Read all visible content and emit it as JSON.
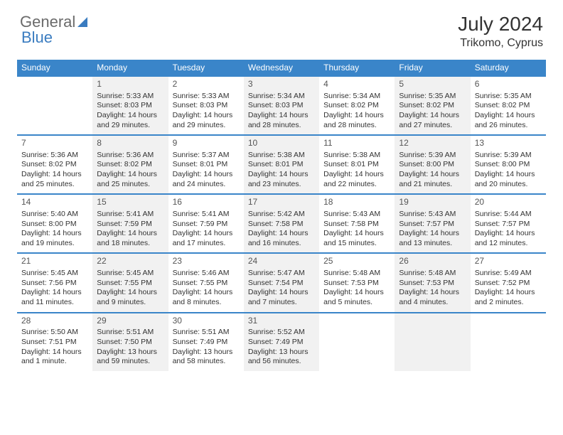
{
  "logo": {
    "part1": "General",
    "part2": "Blue"
  },
  "title": "July 2024",
  "location": "Trikomo, Cyprus",
  "colors": {
    "header_bg": "#3a85c9",
    "header_text": "#ffffff",
    "alt_row_bg": "#f1f1f1",
    "text": "#333333",
    "logo_gray": "#6a6a6a",
    "logo_blue": "#3a7cc0"
  },
  "dow": [
    "Sunday",
    "Monday",
    "Tuesday",
    "Wednesday",
    "Thursday",
    "Friday",
    "Saturday"
  ],
  "weeks": [
    [
      {
        "n": "",
        "lines": []
      },
      {
        "n": "1",
        "lines": [
          "Sunrise: 5:33 AM",
          "Sunset: 8:03 PM",
          "Daylight: 14 hours and 29 minutes."
        ]
      },
      {
        "n": "2",
        "lines": [
          "Sunrise: 5:33 AM",
          "Sunset: 8:03 PM",
          "Daylight: 14 hours and 29 minutes."
        ]
      },
      {
        "n": "3",
        "lines": [
          "Sunrise: 5:34 AM",
          "Sunset: 8:03 PM",
          "Daylight: 14 hours and 28 minutes."
        ]
      },
      {
        "n": "4",
        "lines": [
          "Sunrise: 5:34 AM",
          "Sunset: 8:02 PM",
          "Daylight: 14 hours and 28 minutes."
        ]
      },
      {
        "n": "5",
        "lines": [
          "Sunrise: 5:35 AM",
          "Sunset: 8:02 PM",
          "Daylight: 14 hours and 27 minutes."
        ]
      },
      {
        "n": "6",
        "lines": [
          "Sunrise: 5:35 AM",
          "Sunset: 8:02 PM",
          "Daylight: 14 hours and 26 minutes."
        ]
      }
    ],
    [
      {
        "n": "7",
        "lines": [
          "Sunrise: 5:36 AM",
          "Sunset: 8:02 PM",
          "Daylight: 14 hours and 25 minutes."
        ]
      },
      {
        "n": "8",
        "lines": [
          "Sunrise: 5:36 AM",
          "Sunset: 8:02 PM",
          "Daylight: 14 hours and 25 minutes."
        ]
      },
      {
        "n": "9",
        "lines": [
          "Sunrise: 5:37 AM",
          "Sunset: 8:01 PM",
          "Daylight: 14 hours and 24 minutes."
        ]
      },
      {
        "n": "10",
        "lines": [
          "Sunrise: 5:38 AM",
          "Sunset: 8:01 PM",
          "Daylight: 14 hours and 23 minutes."
        ]
      },
      {
        "n": "11",
        "lines": [
          "Sunrise: 5:38 AM",
          "Sunset: 8:01 PM",
          "Daylight: 14 hours and 22 minutes."
        ]
      },
      {
        "n": "12",
        "lines": [
          "Sunrise: 5:39 AM",
          "Sunset: 8:00 PM",
          "Daylight: 14 hours and 21 minutes."
        ]
      },
      {
        "n": "13",
        "lines": [
          "Sunrise: 5:39 AM",
          "Sunset: 8:00 PM",
          "Daylight: 14 hours and 20 minutes."
        ]
      }
    ],
    [
      {
        "n": "14",
        "lines": [
          "Sunrise: 5:40 AM",
          "Sunset: 8:00 PM",
          "Daylight: 14 hours and 19 minutes."
        ]
      },
      {
        "n": "15",
        "lines": [
          "Sunrise: 5:41 AM",
          "Sunset: 7:59 PM",
          "Daylight: 14 hours and 18 minutes."
        ]
      },
      {
        "n": "16",
        "lines": [
          "Sunrise: 5:41 AM",
          "Sunset: 7:59 PM",
          "Daylight: 14 hours and 17 minutes."
        ]
      },
      {
        "n": "17",
        "lines": [
          "Sunrise: 5:42 AM",
          "Sunset: 7:58 PM",
          "Daylight: 14 hours and 16 minutes."
        ]
      },
      {
        "n": "18",
        "lines": [
          "Sunrise: 5:43 AM",
          "Sunset: 7:58 PM",
          "Daylight: 14 hours and 15 minutes."
        ]
      },
      {
        "n": "19",
        "lines": [
          "Sunrise: 5:43 AM",
          "Sunset: 7:57 PM",
          "Daylight: 14 hours and 13 minutes."
        ]
      },
      {
        "n": "20",
        "lines": [
          "Sunrise: 5:44 AM",
          "Sunset: 7:57 PM",
          "Daylight: 14 hours and 12 minutes."
        ]
      }
    ],
    [
      {
        "n": "21",
        "lines": [
          "Sunrise: 5:45 AM",
          "Sunset: 7:56 PM",
          "Daylight: 14 hours and 11 minutes."
        ]
      },
      {
        "n": "22",
        "lines": [
          "Sunrise: 5:45 AM",
          "Sunset: 7:55 PM",
          "Daylight: 14 hours and 9 minutes."
        ]
      },
      {
        "n": "23",
        "lines": [
          "Sunrise: 5:46 AM",
          "Sunset: 7:55 PM",
          "Daylight: 14 hours and 8 minutes."
        ]
      },
      {
        "n": "24",
        "lines": [
          "Sunrise: 5:47 AM",
          "Sunset: 7:54 PM",
          "Daylight: 14 hours and 7 minutes."
        ]
      },
      {
        "n": "25",
        "lines": [
          "Sunrise: 5:48 AM",
          "Sunset: 7:53 PM",
          "Daylight: 14 hours and 5 minutes."
        ]
      },
      {
        "n": "26",
        "lines": [
          "Sunrise: 5:48 AM",
          "Sunset: 7:53 PM",
          "Daylight: 14 hours and 4 minutes."
        ]
      },
      {
        "n": "27",
        "lines": [
          "Sunrise: 5:49 AM",
          "Sunset: 7:52 PM",
          "Daylight: 14 hours and 2 minutes."
        ]
      }
    ],
    [
      {
        "n": "28",
        "lines": [
          "Sunrise: 5:50 AM",
          "Sunset: 7:51 PM",
          "Daylight: 14 hours and 1 minute."
        ]
      },
      {
        "n": "29",
        "lines": [
          "Sunrise: 5:51 AM",
          "Sunset: 7:50 PM",
          "Daylight: 13 hours and 59 minutes."
        ]
      },
      {
        "n": "30",
        "lines": [
          "Sunrise: 5:51 AM",
          "Sunset: 7:49 PM",
          "Daylight: 13 hours and 58 minutes."
        ]
      },
      {
        "n": "31",
        "lines": [
          "Sunrise: 5:52 AM",
          "Sunset: 7:49 PM",
          "Daylight: 13 hours and 56 minutes."
        ]
      },
      {
        "n": "",
        "lines": []
      },
      {
        "n": "",
        "lines": []
      },
      {
        "n": "",
        "lines": []
      }
    ]
  ]
}
